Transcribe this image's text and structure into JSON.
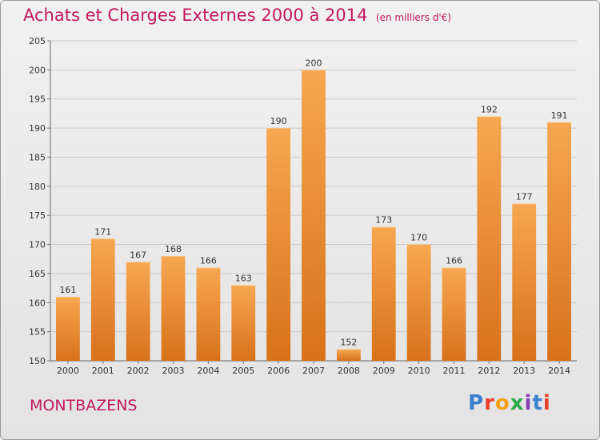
{
  "header": {
    "title": "Achats et Charges Externes 2000 à 2014",
    "unit": "(en milliers d'€)"
  },
  "footer": {
    "commune": "MONTBAZENS",
    "logo_text": "Proxiti"
  },
  "logo_letters": [
    {
      "char": "P",
      "color": "#3a7fd0"
    },
    {
      "char": "r",
      "color": "#e8402b"
    },
    {
      "char": "o",
      "color": "#f4a11a"
    },
    {
      "char": "x",
      "color": "#2aa84a"
    },
    {
      "char": "i",
      "color": "#8a3fb8"
    },
    {
      "char": "t",
      "color": "#3a7fd0"
    },
    {
      "char": "i",
      "color": "#e8402b"
    }
  ],
  "colors": {
    "title": "#c0185d",
    "bar_light": "#f6a24a",
    "bar_dark": "#d8741a",
    "grid": "#c9c9c9"
  },
  "chart_data": {
    "type": "bar",
    "title": "Achats et Charges Externes 2000 à 2014",
    "subtitle": "(en milliers d'€)",
    "categories": [
      "2000",
      "2001",
      "2002",
      "2003",
      "2004",
      "2005",
      "2006",
      "2007",
      "2008",
      "2009",
      "2010",
      "2011",
      "2012",
      "2013",
      "2014"
    ],
    "values": [
      161,
      171,
      167,
      168,
      166,
      163,
      190,
      200,
      152,
      173,
      170,
      166,
      192,
      177,
      191
    ],
    "ylim": [
      150,
      205
    ],
    "yticks": [
      150,
      155,
      160,
      165,
      170,
      175,
      180,
      185,
      190,
      195,
      200,
      205
    ],
    "grid": true
  }
}
